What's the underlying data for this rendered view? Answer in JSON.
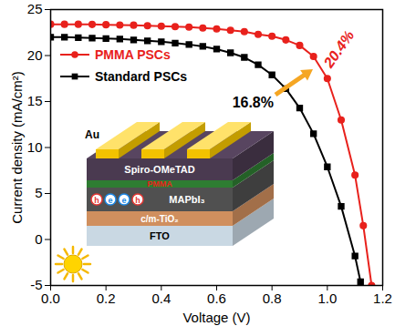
{
  "chart_data": {
    "type": "line",
    "xlabel": "Voltage (V)",
    "ylabel": "Current density (mA/cm²)",
    "xlim": [
      0,
      1.2
    ],
    "xticks": [
      {
        "value": 0,
        "label": "0.0"
      },
      0.2,
      0.4,
      0.6,
      0.8,
      {
        "value": 1,
        "label": "1.0"
      },
      1.2
    ],
    "ylim": [
      -5,
      25
    ],
    "yticks": [
      -5,
      0,
      5,
      10,
      15,
      20,
      25
    ],
    "legend": "upper left",
    "series": [
      {
        "name": "PMMA PSCs",
        "color": "#e8211c",
        "marker": "circle",
        "x": [
          0,
          0.05,
          0.1,
          0.15,
          0.2,
          0.25,
          0.3,
          0.35,
          0.4,
          0.45,
          0.5,
          0.55,
          0.6,
          0.65,
          0.7,
          0.75,
          0.8,
          0.85,
          0.9,
          0.95,
          1.0,
          1.05,
          1.1,
          1.13,
          1.16
        ],
        "values": [
          23.4,
          23.4,
          23.4,
          23.38,
          23.35,
          23.32,
          23.3,
          23.25,
          23.2,
          23.15,
          23.1,
          23.0,
          22.9,
          22.75,
          22.6,
          22.3,
          22.1,
          21.7,
          21.1,
          19.9,
          17.5,
          13.0,
          7.0,
          1.5,
          -5.0
        ]
      },
      {
        "name": "Standard PSCs",
        "color": "#000000",
        "marker": "square",
        "x": [
          0,
          0.05,
          0.1,
          0.15,
          0.2,
          0.25,
          0.3,
          0.35,
          0.4,
          0.45,
          0.5,
          0.55,
          0.6,
          0.65,
          0.7,
          0.75,
          0.8,
          0.85,
          0.9,
          0.95,
          1.0,
          1.05,
          1.1,
          1.12
        ],
        "values": [
          22.0,
          22.0,
          21.95,
          21.9,
          21.85,
          21.8,
          21.7,
          21.6,
          21.5,
          21.35,
          21.2,
          21.0,
          20.7,
          20.3,
          19.8,
          19.0,
          17.9,
          16.4,
          14.3,
          11.5,
          7.9,
          3.6,
          -1.8,
          -4.6
        ]
      }
    ],
    "annotations": [
      {
        "text": "20.4%",
        "color": "#e8211c"
      },
      {
        "text": "16.8%",
        "color": "#000000"
      }
    ],
    "inset": {
      "layers": [
        "Au",
        "Spiro-OMeTAD",
        "PMMA",
        "MAPbI₃",
        "c/m-TiO₂",
        "FTO"
      ],
      "carriers": [
        "h",
        "e",
        "e",
        "h"
      ]
    }
  }
}
